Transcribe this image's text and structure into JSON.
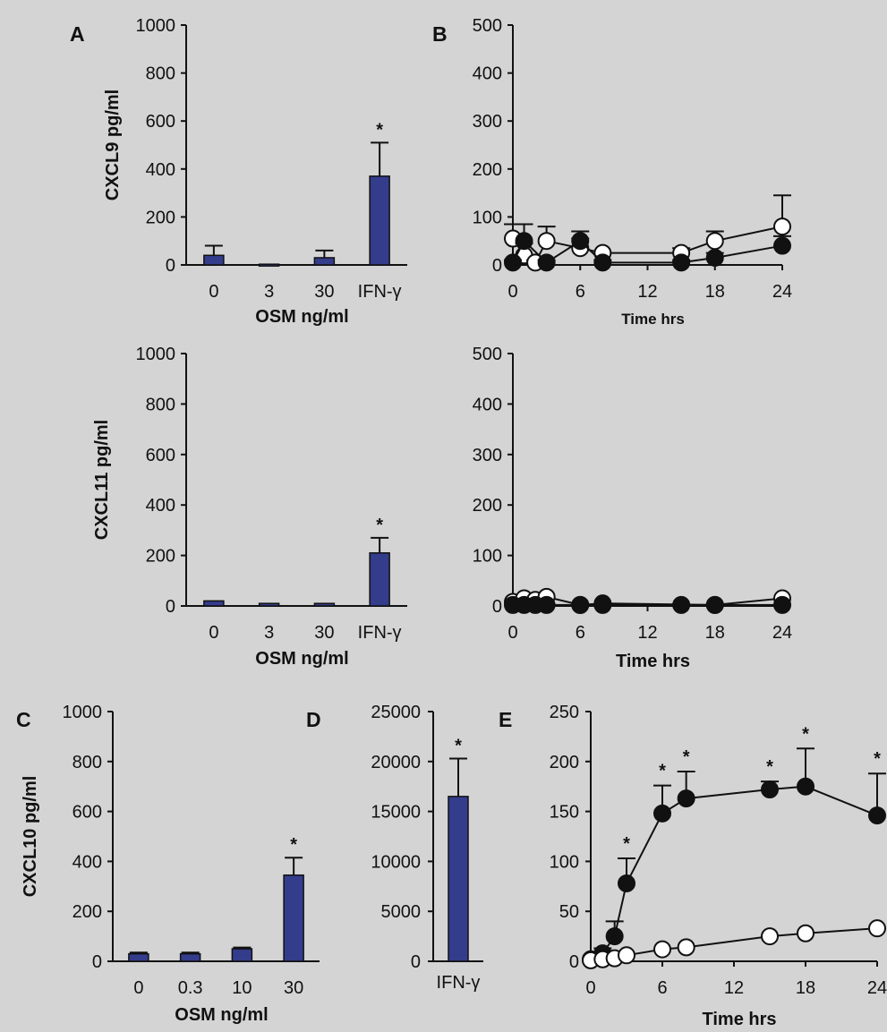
{
  "chart_data": [
    {
      "id": "A1",
      "panel_label": "A",
      "type": "bar",
      "categories": [
        "0",
        "3",
        "30",
        "IFN-γ"
      ],
      "values": [
        40,
        3,
        30,
        370
      ],
      "errors": [
        40,
        0,
        30,
        140
      ],
      "significant": [
        false,
        false,
        false,
        true
      ],
      "ylim": [
        0,
        1000
      ],
      "yticks": [
        0,
        200,
        400,
        600,
        800,
        1000
      ],
      "ylabel": "CXCL9 pg/ml",
      "xlabel": "OSM ng/ml",
      "bar_color": "#343c8c"
    },
    {
      "id": "B1",
      "panel_label": "B",
      "type": "line",
      "xlim": [
        0,
        24
      ],
      "xticks": [
        0,
        6,
        12,
        18,
        24
      ],
      "ylim": [
        0,
        500
      ],
      "yticks": [
        0,
        100,
        200,
        300,
        400,
        500
      ],
      "xlabel": "Time hrs",
      "ylabel": "",
      "series": [
        {
          "marker": "open-circle",
          "x": [
            0,
            1,
            2,
            3,
            6,
            8,
            15,
            18,
            24
          ],
          "y": [
            55,
            20,
            5,
            50,
            35,
            25,
            25,
            50,
            80
          ],
          "err": [
            30,
            25,
            5,
            30,
            20,
            0,
            10,
            20,
            65
          ]
        },
        {
          "marker": "filled-circle",
          "x": [
            0,
            1,
            3,
            6,
            8,
            15,
            18,
            24
          ],
          "y": [
            5,
            50,
            5,
            50,
            5,
            5,
            15,
            40
          ],
          "err": [
            5,
            35,
            5,
            20,
            5,
            5,
            10,
            20
          ]
        }
      ]
    },
    {
      "id": "A2",
      "type": "bar",
      "categories": [
        "0",
        "3",
        "30",
        "IFN-γ"
      ],
      "values": [
        20,
        10,
        10,
        210
      ],
      "errors": [
        0,
        0,
        0,
        60
      ],
      "significant": [
        false,
        false,
        false,
        true
      ],
      "ylim": [
        0,
        1000
      ],
      "yticks": [
        0,
        200,
        400,
        600,
        800,
        1000
      ],
      "ylabel": "CXCL11 pg/ml",
      "xlabel": "OSM ng/ml",
      "bar_color": "#343c8c"
    },
    {
      "id": "B2",
      "type": "line",
      "xlim": [
        0,
        24
      ],
      "xticks": [
        0,
        6,
        12,
        18,
        24
      ],
      "ylim": [
        0,
        500
      ],
      "yticks": [
        0,
        100,
        200,
        300,
        400,
        500
      ],
      "xlabel": "Time hrs",
      "ylabel": "",
      "series": [
        {
          "marker": "open-circle",
          "x": [
            0,
            1,
            2,
            3,
            6,
            8,
            18,
            24
          ],
          "y": [
            8,
            15,
            12,
            18,
            2,
            5,
            2,
            15
          ],
          "err": [
            0,
            0,
            0,
            0,
            0,
            0,
            0,
            0
          ]
        },
        {
          "marker": "filled-circle",
          "x": [
            0,
            1,
            2,
            3,
            6,
            8,
            15,
            18,
            24
          ],
          "y": [
            2,
            2,
            2,
            2,
            2,
            2,
            2,
            2,
            2
          ],
          "err": [
            0,
            0,
            0,
            0,
            0,
            0,
            0,
            0,
            0
          ]
        }
      ]
    },
    {
      "id": "C",
      "panel_label": "C",
      "type": "bar",
      "categories": [
        "0",
        "0.3",
        "10",
        "30"
      ],
      "values": [
        30,
        30,
        50,
        345
      ],
      "errors": [
        5,
        5,
        5,
        70
      ],
      "significant": [
        false,
        false,
        false,
        true
      ],
      "ylim": [
        0,
        1000
      ],
      "yticks": [
        0,
        200,
        400,
        600,
        800,
        1000
      ],
      "ylabel": "CXCL10 pg/ml",
      "xlabel": "OSM ng/ml",
      "bar_color": "#343c8c"
    },
    {
      "id": "D",
      "panel_label": "D",
      "type": "bar",
      "categories": [
        "IFN-γ"
      ],
      "values": [
        16500
      ],
      "errors": [
        3800
      ],
      "significant": [
        true
      ],
      "ylim": [
        0,
        25000
      ],
      "yticks": [
        0,
        5000,
        10000,
        15000,
        20000,
        25000
      ],
      "ylabel": "",
      "xlabel": "",
      "bar_color": "#343c8c"
    },
    {
      "id": "E",
      "panel_label": "E",
      "type": "line",
      "xlim": [
        0,
        24
      ],
      "xticks": [
        0,
        6,
        12,
        18,
        24
      ],
      "ylim": [
        0,
        250
      ],
      "yticks": [
        0,
        50,
        100,
        150,
        200,
        250
      ],
      "xlabel": "Time hrs",
      "ylabel": "",
      "series": [
        {
          "marker": "filled-circle",
          "x": [
            0,
            1,
            2,
            3,
            6,
            8,
            15,
            18,
            24
          ],
          "y": [
            2,
            8,
            25,
            78,
            148,
            163,
            172,
            175,
            146
          ],
          "err": [
            0,
            5,
            15,
            25,
            28,
            27,
            8,
            38,
            42
          ],
          "significant": [
            false,
            false,
            false,
            true,
            true,
            true,
            true,
            true,
            true
          ]
        },
        {
          "marker": "open-circle",
          "x": [
            0,
            1,
            2,
            3,
            6,
            8,
            15,
            18,
            24
          ],
          "y": [
            1,
            2,
            3,
            6,
            12,
            14,
            25,
            28,
            33
          ],
          "err": [
            0,
            0,
            0,
            0,
            0,
            0,
            0,
            0,
            0
          ]
        }
      ]
    }
  ]
}
